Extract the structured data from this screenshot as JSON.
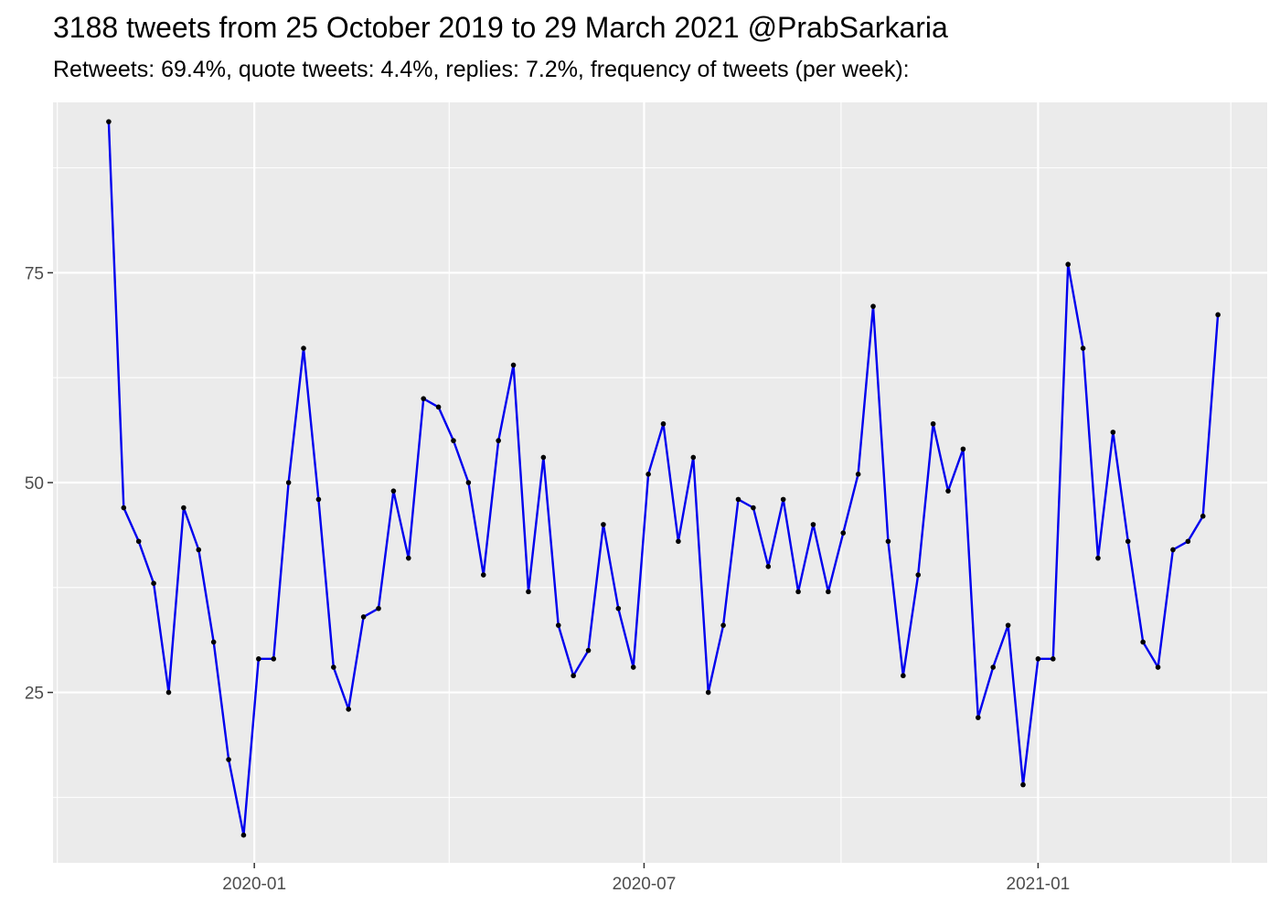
{
  "chart_data": {
    "type": "line",
    "title": "3188 tweets from 25 October 2019 to 29 March 2021 @PrabSarkaria",
    "subtitle": "Retweets: 69.4%, quote tweets: 4.4%, replies: 7.2%, frequency of tweets (per week):",
    "xlabel": "",
    "ylabel": "",
    "x_tick_labels": [
      "2020-01",
      "2020-07",
      "2021-01"
    ],
    "x_ticks": [
      "2020-01-01",
      "2020-07-01",
      "2021-01-01"
    ],
    "x_minor_ticks": [
      "2019-10-01",
      "2020-04-01",
      "2020-10-01",
      "2021-04-01"
    ],
    "y_ticks": [
      25,
      50,
      75
    ],
    "y_minor_ticks": [
      12.5,
      37.5,
      62.5,
      87.5
    ],
    "xlim": [
      "2019-09-29",
      "2021-04-18"
    ],
    "ylim": [
      4.7,
      95.3
    ],
    "grid": true,
    "line_color": "#0000ee",
    "point_color": "#000000",
    "panel_color": "#ebebeb",
    "series": [
      {
        "x": [
          "2019-10-25",
          "2019-11-01",
          "2019-11-08",
          "2019-11-15",
          "2019-11-22",
          "2019-11-29",
          "2019-12-06",
          "2019-12-13",
          "2019-12-20",
          "2019-12-27",
          "2020-01-03",
          "2020-01-10",
          "2020-01-17",
          "2020-01-24",
          "2020-01-31",
          "2020-02-07",
          "2020-02-14",
          "2020-02-21",
          "2020-02-28",
          "2020-03-06",
          "2020-03-13",
          "2020-03-20",
          "2020-03-27",
          "2020-04-03",
          "2020-04-10",
          "2020-04-17",
          "2020-04-24",
          "2020-05-01",
          "2020-05-08",
          "2020-05-15",
          "2020-05-22",
          "2020-05-29",
          "2020-06-05",
          "2020-06-12",
          "2020-06-19",
          "2020-06-26",
          "2020-07-03",
          "2020-07-10",
          "2020-07-17",
          "2020-07-24",
          "2020-07-31",
          "2020-08-07",
          "2020-08-14",
          "2020-08-21",
          "2020-08-28",
          "2020-09-04",
          "2020-09-11",
          "2020-09-18",
          "2020-09-25",
          "2020-10-02",
          "2020-10-09",
          "2020-10-16",
          "2020-10-23",
          "2020-10-30",
          "2020-11-06",
          "2020-11-13",
          "2020-11-20",
          "2020-11-27",
          "2020-12-04",
          "2020-12-11",
          "2020-12-18",
          "2020-12-25",
          "2021-01-01",
          "2021-01-08",
          "2021-01-15",
          "2021-01-22",
          "2021-01-29",
          "2021-02-05",
          "2021-02-12",
          "2021-02-19",
          "2021-02-26",
          "2021-03-05",
          "2021-03-12",
          "2021-03-19",
          "2021-03-26"
        ],
        "values": [
          93,
          47,
          43,
          38,
          25,
          47,
          42,
          31,
          17,
          8,
          29,
          29,
          50,
          66,
          48,
          28,
          23,
          34,
          35,
          49,
          41,
          60,
          59,
          55,
          50,
          39,
          55,
          64,
          37,
          53,
          33,
          27,
          30,
          45,
          35,
          28,
          51,
          57,
          43,
          53,
          25,
          33,
          48,
          47,
          40,
          48,
          37,
          45,
          37,
          44,
          51,
          71,
          43,
          27,
          39,
          57,
          49,
          54,
          22,
          28,
          33,
          14,
          29,
          29,
          76,
          66,
          41,
          56,
          43,
          31,
          28,
          42,
          43,
          46,
          70
        ]
      }
    ]
  }
}
